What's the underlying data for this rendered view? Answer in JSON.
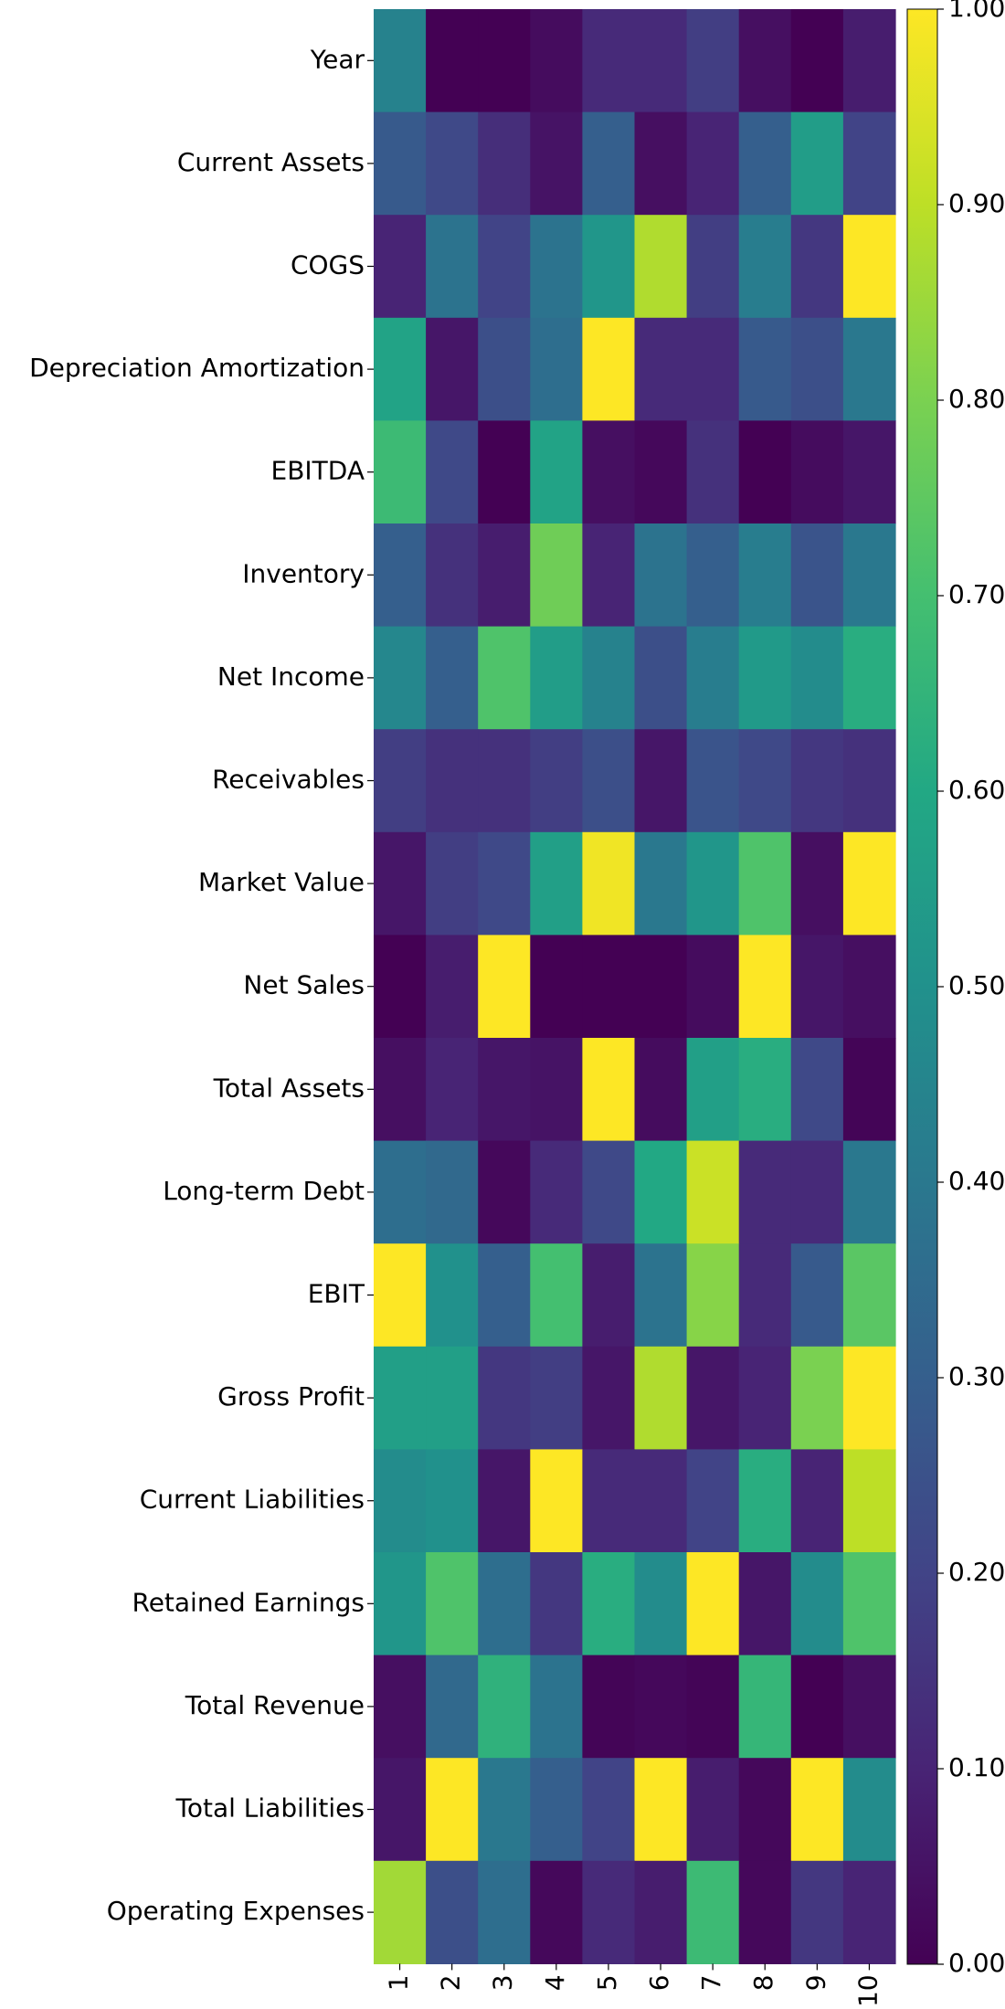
{
  "chart_data": {
    "type": "heatmap",
    "title": "",
    "xlabel": "",
    "ylabel": "",
    "x": [
      "1",
      "2",
      "3",
      "4",
      "5",
      "6",
      "7",
      "8",
      "9",
      "10"
    ],
    "y": [
      "Year",
      "Current Assets",
      "COGS",
      "Depreciation Amortization",
      "EBITDA",
      "Inventory",
      "Net Income",
      "Receivables",
      "Market Value",
      "Net Sales",
      "Total Assets",
      "Long-term Debt",
      "EBIT",
      "Gross Profit",
      "Current Liabilities",
      "Retained Earnings",
      "Total Revenue",
      "Total Liabilities",
      "Operating Expenses"
    ],
    "values": [
      [
        0.44,
        0.0,
        0.0,
        0.03,
        0.12,
        0.12,
        0.18,
        0.04,
        0.0,
        0.08
      ],
      [
        0.28,
        0.22,
        0.13,
        0.05,
        0.3,
        0.04,
        0.1,
        0.3,
        0.55,
        0.2
      ],
      [
        0.1,
        0.38,
        0.2,
        0.38,
        0.52,
        0.88,
        0.18,
        0.42,
        0.16,
        1.0
      ],
      [
        0.58,
        0.06,
        0.24,
        0.36,
        1.0,
        0.12,
        0.12,
        0.28,
        0.24,
        0.4
      ],
      [
        0.68,
        0.22,
        0.0,
        0.58,
        0.04,
        0.02,
        0.14,
        0.0,
        0.03,
        0.06
      ],
      [
        0.3,
        0.14,
        0.08,
        0.78,
        0.1,
        0.38,
        0.3,
        0.42,
        0.26,
        0.4
      ],
      [
        0.46,
        0.3,
        0.72,
        0.55,
        0.44,
        0.24,
        0.42,
        0.54,
        0.48,
        0.62
      ],
      [
        0.18,
        0.14,
        0.14,
        0.18,
        0.24,
        0.06,
        0.26,
        0.22,
        0.16,
        0.14
      ],
      [
        0.06,
        0.18,
        0.22,
        0.56,
        0.98,
        0.4,
        0.52,
        0.72,
        0.04,
        1.0
      ],
      [
        0.0,
        0.08,
        1.0,
        0.0,
        0.0,
        0.0,
        0.03,
        1.0,
        0.06,
        0.04
      ],
      [
        0.04,
        0.1,
        0.06,
        0.05,
        1.0,
        0.03,
        0.56,
        0.62,
        0.22,
        0.01
      ],
      [
        0.36,
        0.34,
        0.02,
        0.12,
        0.22,
        0.6,
        0.92,
        0.12,
        0.12,
        0.4
      ],
      [
        1.0,
        0.5,
        0.3,
        0.7,
        0.08,
        0.38,
        0.82,
        0.12,
        0.28,
        0.74
      ],
      [
        0.56,
        0.56,
        0.16,
        0.18,
        0.06,
        0.88,
        0.06,
        0.1,
        0.8,
        1.0
      ],
      [
        0.48,
        0.5,
        0.06,
        1.0,
        0.12,
        0.12,
        0.2,
        0.62,
        0.1,
        0.9
      ],
      [
        0.52,
        0.72,
        0.36,
        0.16,
        0.62,
        0.48,
        1.0,
        0.06,
        0.48,
        0.72
      ],
      [
        0.04,
        0.34,
        0.64,
        0.38,
        0.01,
        0.02,
        0.01,
        0.66,
        0.0,
        0.04
      ],
      [
        0.06,
        1.0,
        0.4,
        0.3,
        0.2,
        1.0,
        0.08,
        0.02,
        1.0,
        0.48
      ],
      [
        0.86,
        0.24,
        0.36,
        0.02,
        0.12,
        0.08,
        0.68,
        0.02,
        0.16,
        0.1
      ]
    ],
    "zlim": [
      0.0,
      1.0
    ],
    "colormap": "viridis",
    "colorbar_ticks": [
      "0.00",
      "0.10",
      "0.20",
      "0.30",
      "0.40",
      "0.50",
      "0.60",
      "0.70",
      "0.80",
      "0.90",
      "1.00"
    ],
    "colorbar_position": "right",
    "grid": false
  }
}
